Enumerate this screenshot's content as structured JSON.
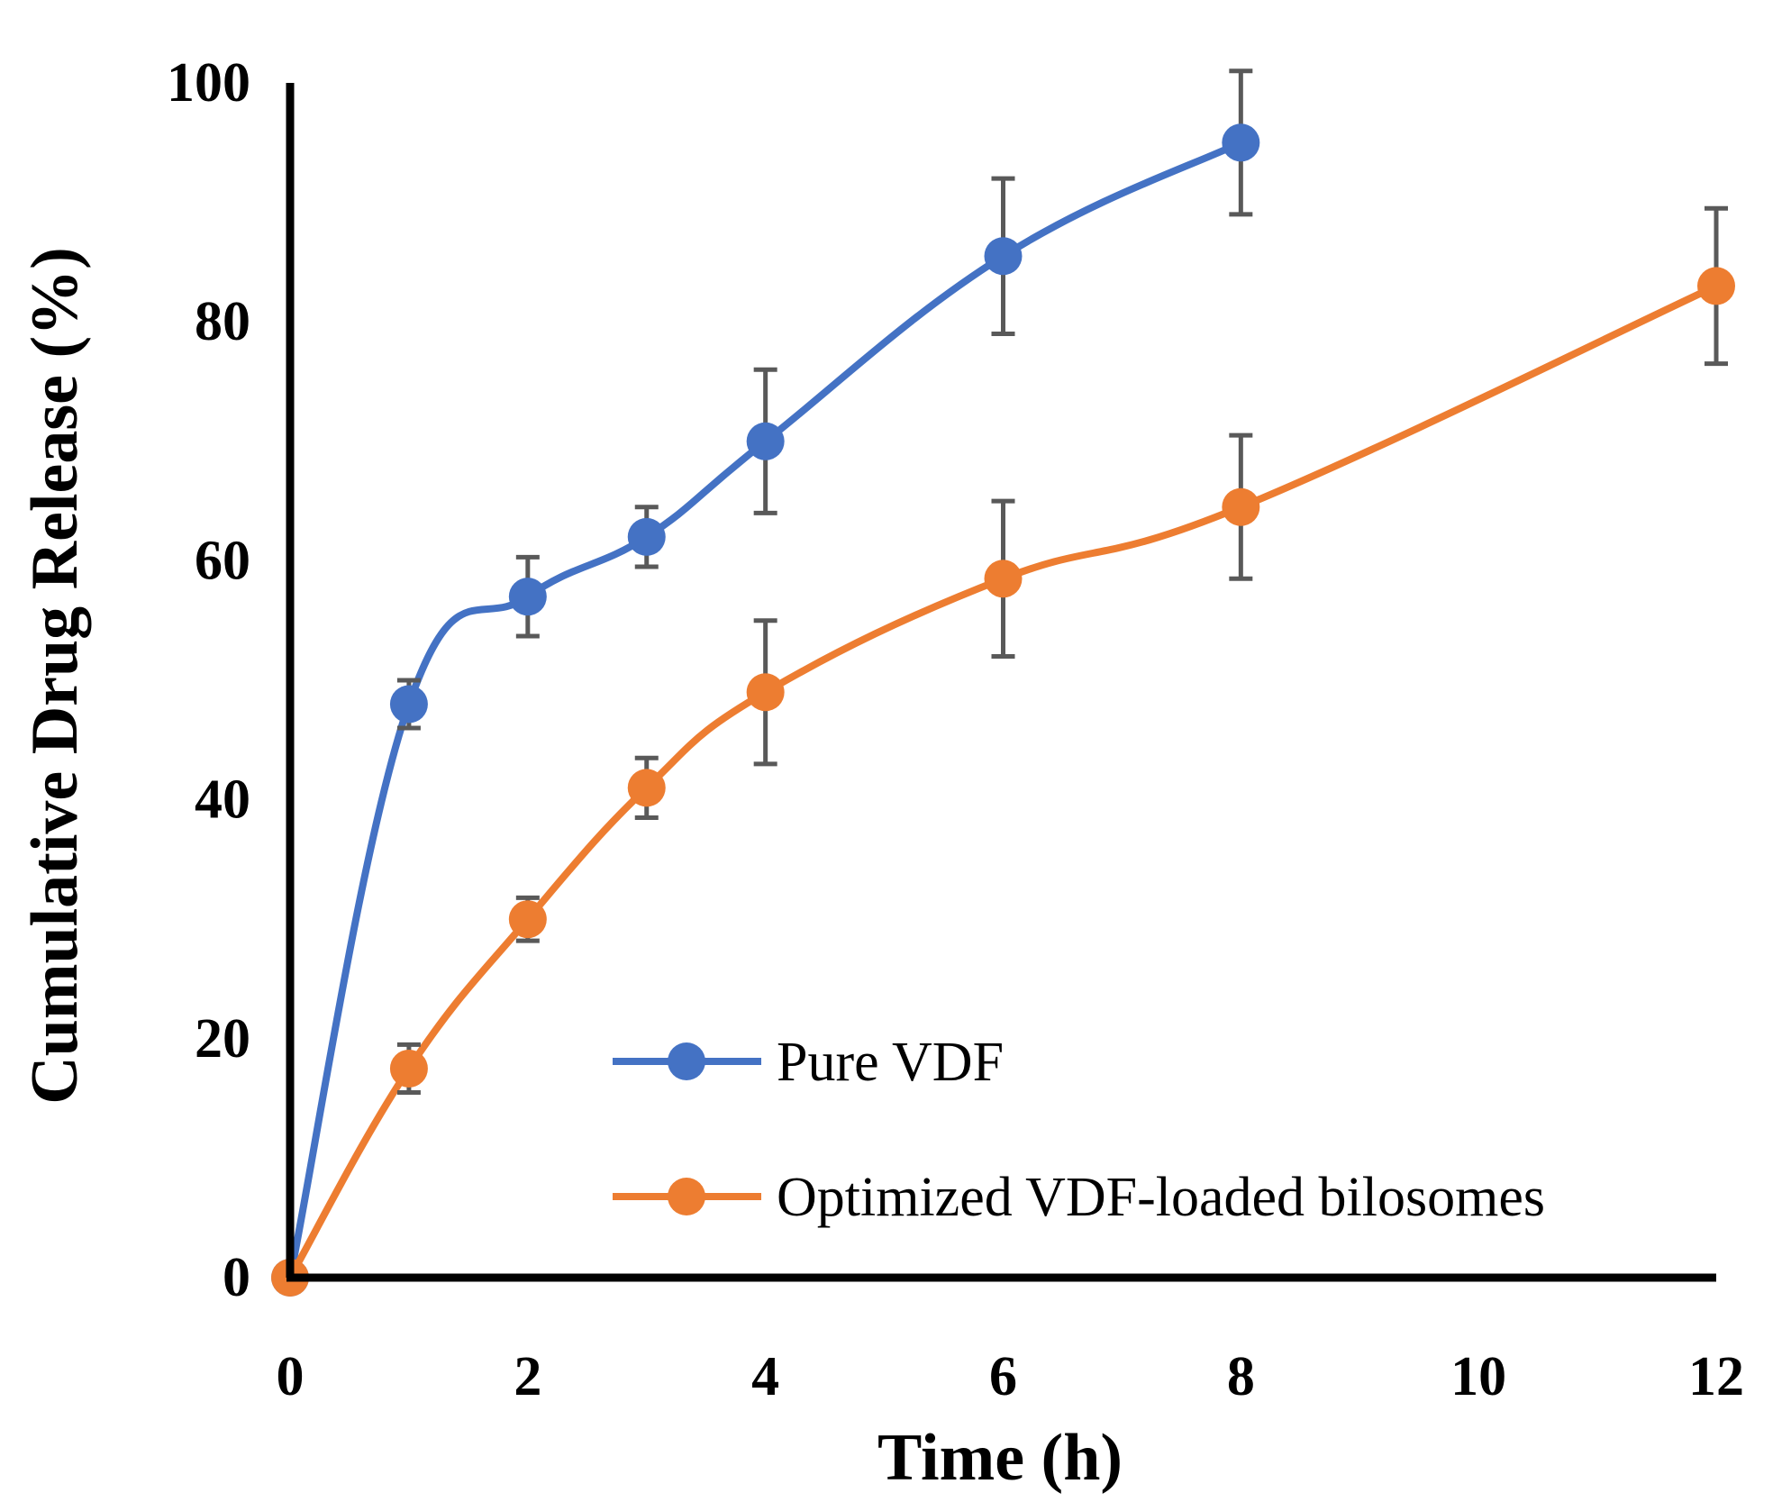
{
  "chart_data": {
    "type": "line",
    "title": "",
    "xlabel": "Time (h)",
    "ylabel": "Cumulative Drug Release (%)",
    "xlim": [
      0,
      12
    ],
    "ylim": [
      0,
      100
    ],
    "x_ticks": [
      0,
      2,
      4,
      6,
      8,
      10,
      12
    ],
    "y_ticks": [
      0,
      20,
      40,
      60,
      80,
      100
    ],
    "grid": false,
    "legend_position": "bottom-right",
    "series": [
      {
        "name": "Pure VDF",
        "color": "#4472C4",
        "x": [
          0,
          1,
          2,
          3,
          4,
          6,
          8
        ],
        "y": [
          0,
          48,
          57,
          62,
          70,
          85.5,
          95
        ],
        "error": [
          0,
          2,
          3.3,
          2.5,
          6,
          6.5,
          6
        ]
      },
      {
        "name": "Optimized VDF-loaded bilosomes",
        "color": "#ED7D31",
        "x": [
          0,
          1,
          2,
          3,
          4,
          6,
          8,
          12
        ],
        "y": [
          0,
          17.5,
          30,
          41,
          49,
          58.5,
          64.5,
          83
        ],
        "error": [
          0,
          2,
          1.8,
          2.5,
          6,
          6.5,
          6,
          6.5
        ]
      }
    ]
  }
}
